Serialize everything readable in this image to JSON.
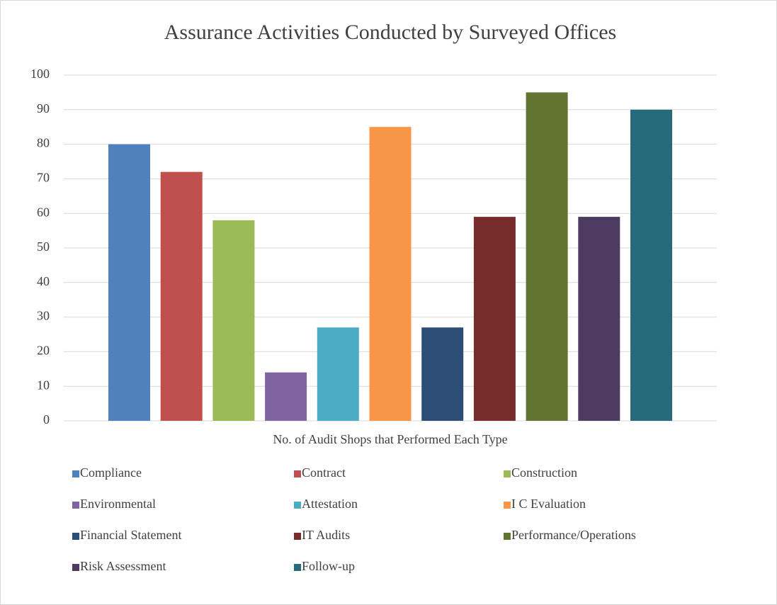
{
  "chart_data": {
    "type": "bar",
    "title": "Assurance Activities Conducted by Surveyed Offices",
    "categories": [
      "No. of Audit Shops that Performed Each Type"
    ],
    "series": [
      {
        "name": "Compliance",
        "color": "#4f81bd",
        "values": [
          80
        ]
      },
      {
        "name": "Contract",
        "color": "#c0504d",
        "values": [
          72
        ]
      },
      {
        "name": "Construction",
        "color": "#9bbb59",
        "values": [
          58
        ]
      },
      {
        "name": "Environmental",
        "color": "#8064a2",
        "values": [
          14
        ]
      },
      {
        "name": "Attestation",
        "color": "#4bacc6",
        "values": [
          27
        ]
      },
      {
        "name": "I C Evaluation",
        "color": "#f79646",
        "values": [
          85
        ]
      },
      {
        "name": "Financial Statement",
        "color": "#2c4d75",
        "values": [
          27
        ]
      },
      {
        "name": "IT Audits",
        "color": "#772c2a",
        "values": [
          59
        ]
      },
      {
        "name": "Performance/Operations",
        "color": "#5f7530",
        "values": [
          95
        ]
      },
      {
        "name": "Risk Assessment",
        "color": "#4d3b62",
        "values": [
          59
        ]
      },
      {
        "name": "Follow-up",
        "color": "#276a7c",
        "values": [
          90
        ]
      }
    ],
    "ylim": [
      0,
      100
    ],
    "yticks": [
      0,
      10,
      20,
      30,
      40,
      50,
      60,
      70,
      80,
      90,
      100
    ],
    "grid": true,
    "legend": "bottom"
  }
}
